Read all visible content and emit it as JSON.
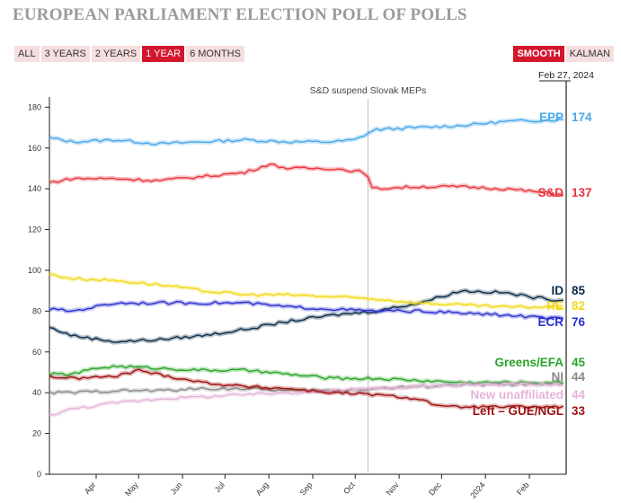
{
  "header": {
    "title": "EUROPEAN PARLIAMENT ELECTION POLL OF POLLS",
    "range_buttons": [
      {
        "label": "ALL",
        "active": false
      },
      {
        "label": "3 YEARS",
        "active": false
      },
      {
        "label": "2 YEARS",
        "active": false
      },
      {
        "label": "1 YEAR",
        "active": true
      },
      {
        "label": "6 MONTHS",
        "active": false
      }
    ],
    "mode_buttons": [
      {
        "label": "SMOOTH",
        "active": true
      },
      {
        "label": "KALMAN",
        "active": false
      }
    ]
  },
  "colors": {
    "EPP": "#4aa8e8",
    "S&D": "#e8343e",
    "ID": "#0b2b4a",
    "RE": "#f2d91a",
    "ECR": "#2a2ed0",
    "Greens/EFA": "#2aa52a",
    "NI": "#8a8a8a",
    "New unaffiliated": "#e6b4d8",
    "Left – GUE/NGL": "#9c1010"
  },
  "chart_data": {
    "type": "line",
    "title": "EUROPEAN PARLIAMENT ELECTION POLL OF POLLS",
    "xlabel": "",
    "ylabel": "",
    "ylim": [
      0,
      185
    ],
    "yticks": [
      0,
      20,
      40,
      60,
      80,
      100,
      120,
      140,
      160,
      180
    ],
    "xlim": [
      "2023-02-27",
      "2024-02-27"
    ],
    "xticks": [
      {
        "date": "2023-04-01",
        "label": "Apr"
      },
      {
        "date": "2023-05-01",
        "label": "May"
      },
      {
        "date": "2023-06-01",
        "label": "Jun"
      },
      {
        "date": "2023-07-01",
        "label": "Jul"
      },
      {
        "date": "2023-08-01",
        "label": "Aug"
      },
      {
        "date": "2023-09-01",
        "label": "Sep"
      },
      {
        "date": "2023-10-01",
        "label": "Oct"
      },
      {
        "date": "2023-11-01",
        "label": "Nov"
      },
      {
        "date": "2023-12-01",
        "label": "Dec"
      },
      {
        "date": "2024-01-01",
        "label": "2024"
      },
      {
        "date": "2024-02-01",
        "label": "Feb"
      }
    ],
    "grid": false,
    "end_date_label": "Feb 27, 2024",
    "annotations": [
      {
        "date": "2023-10-10",
        "text": "S&D suspend Slovak MEPs"
      }
    ],
    "series": [
      {
        "name": "EPP",
        "label_value": "174",
        "points": [
          [
            "2023-02-27",
            165
          ],
          [
            "2023-03-15",
            163
          ],
          [
            "2023-04-15",
            164
          ],
          [
            "2023-05-15",
            162
          ],
          [
            "2023-06-15",
            163
          ],
          [
            "2023-07-15",
            164
          ],
          [
            "2023-08-15",
            163
          ],
          [
            "2023-09-15",
            163
          ],
          [
            "2023-10-01",
            164
          ],
          [
            "2023-10-15",
            169
          ],
          [
            "2023-11-15",
            170
          ],
          [
            "2023-12-15",
            171
          ],
          [
            "2024-01-15",
            173
          ],
          [
            "2024-02-27",
            174
          ]
        ]
      },
      {
        "name": "S&D",
        "label_value": "137",
        "points": [
          [
            "2023-02-27",
            143
          ],
          [
            "2023-03-15",
            145
          ],
          [
            "2023-04-15",
            145
          ],
          [
            "2023-05-15",
            144
          ],
          [
            "2023-06-15",
            146
          ],
          [
            "2023-07-15",
            148
          ],
          [
            "2023-08-01",
            152
          ],
          [
            "2023-08-15",
            150
          ],
          [
            "2023-09-15",
            150
          ],
          [
            "2023-10-09",
            148
          ],
          [
            "2023-10-12",
            140
          ],
          [
            "2023-11-15",
            141
          ],
          [
            "2023-12-15",
            141
          ],
          [
            "2024-01-15",
            140
          ],
          [
            "2024-02-27",
            137
          ]
        ]
      },
      {
        "name": "ID",
        "label_value": "85",
        "points": [
          [
            "2023-02-27",
            72
          ],
          [
            "2023-03-15",
            68
          ],
          [
            "2023-04-15",
            65
          ],
          [
            "2023-05-15",
            66
          ],
          [
            "2023-06-15",
            68
          ],
          [
            "2023-07-15",
            71
          ],
          [
            "2023-08-15",
            75
          ],
          [
            "2023-09-15",
            78
          ],
          [
            "2023-10-15",
            80
          ],
          [
            "2023-11-15",
            84
          ],
          [
            "2023-12-15",
            90
          ],
          [
            "2024-01-15",
            89
          ],
          [
            "2024-02-01",
            87
          ],
          [
            "2024-02-27",
            85
          ]
        ]
      },
      {
        "name": "RE",
        "label_value": "82",
        "points": [
          [
            "2023-02-27",
            98
          ],
          [
            "2023-03-15",
            96
          ],
          [
            "2023-04-15",
            95
          ],
          [
            "2023-05-15",
            93
          ],
          [
            "2023-06-15",
            90
          ],
          [
            "2023-07-15",
            88
          ],
          [
            "2023-08-15",
            88
          ],
          [
            "2023-09-15",
            87
          ],
          [
            "2023-10-15",
            86
          ],
          [
            "2023-11-15",
            84
          ],
          [
            "2023-12-15",
            83
          ],
          [
            "2024-01-15",
            82
          ],
          [
            "2024-02-27",
            82
          ]
        ]
      },
      {
        "name": "ECR",
        "label_value": "76",
        "points": [
          [
            "2023-02-27",
            81
          ],
          [
            "2023-03-15",
            80
          ],
          [
            "2023-04-15",
            84
          ],
          [
            "2023-05-15",
            84
          ],
          [
            "2023-06-15",
            84
          ],
          [
            "2023-07-15",
            84
          ],
          [
            "2023-08-15",
            82
          ],
          [
            "2023-09-15",
            81
          ],
          [
            "2023-10-15",
            80
          ],
          [
            "2023-11-15",
            80
          ],
          [
            "2023-12-15",
            79
          ],
          [
            "2024-01-15",
            78
          ],
          [
            "2024-02-27",
            76
          ]
        ]
      },
      {
        "name": "Greens/EFA",
        "label_value": "45",
        "points": [
          [
            "2023-02-27",
            49
          ],
          [
            "2023-03-15",
            49
          ],
          [
            "2023-04-01",
            52
          ],
          [
            "2023-04-15",
            53
          ],
          [
            "2023-05-15",
            52
          ],
          [
            "2023-06-15",
            51
          ],
          [
            "2023-07-15",
            51
          ],
          [
            "2023-08-15",
            49
          ],
          [
            "2023-09-15",
            47
          ],
          [
            "2023-10-15",
            47
          ],
          [
            "2023-11-15",
            46
          ],
          [
            "2023-12-15",
            45
          ],
          [
            "2024-01-15",
            45
          ],
          [
            "2024-02-27",
            45
          ]
        ]
      },
      {
        "name": "NI",
        "label_value": "44",
        "points": [
          [
            "2023-02-27",
            40
          ],
          [
            "2023-03-15",
            40
          ],
          [
            "2023-04-15",
            41
          ],
          [
            "2023-05-15",
            41
          ],
          [
            "2023-06-15",
            42
          ],
          [
            "2023-07-15",
            42
          ],
          [
            "2023-08-15",
            41
          ],
          [
            "2023-09-15",
            41
          ],
          [
            "2023-10-15",
            42
          ],
          [
            "2023-11-15",
            43
          ],
          [
            "2023-12-15",
            44
          ],
          [
            "2024-01-15",
            44
          ],
          [
            "2024-02-27",
            44
          ]
        ]
      },
      {
        "name": "New unaffiliated",
        "label_value": "44",
        "points": [
          [
            "2023-02-27",
            29
          ],
          [
            "2023-03-15",
            32
          ],
          [
            "2023-04-15",
            35
          ],
          [
            "2023-05-15",
            37
          ],
          [
            "2023-06-15",
            38
          ],
          [
            "2023-07-15",
            39
          ],
          [
            "2023-08-15",
            40
          ],
          [
            "2023-09-15",
            41
          ],
          [
            "2023-10-15",
            42
          ],
          [
            "2023-11-15",
            43
          ],
          [
            "2023-12-15",
            44
          ],
          [
            "2024-01-15",
            44
          ],
          [
            "2024-02-27",
            44
          ]
        ]
      },
      {
        "name": "Left – GUE/NGL",
        "label_value": "33",
        "points": [
          [
            "2023-02-27",
            48
          ],
          [
            "2023-03-15",
            47
          ],
          [
            "2023-04-15",
            48
          ],
          [
            "2023-05-01",
            51
          ],
          [
            "2023-05-15",
            49
          ],
          [
            "2023-06-15",
            45
          ],
          [
            "2023-07-15",
            43
          ],
          [
            "2023-08-15",
            42
          ],
          [
            "2023-09-15",
            40
          ],
          [
            "2023-10-15",
            39
          ],
          [
            "2023-11-15",
            37
          ],
          [
            "2023-12-01",
            33
          ],
          [
            "2024-01-15",
            33
          ],
          [
            "2024-02-27",
            33
          ]
        ]
      }
    ]
  }
}
